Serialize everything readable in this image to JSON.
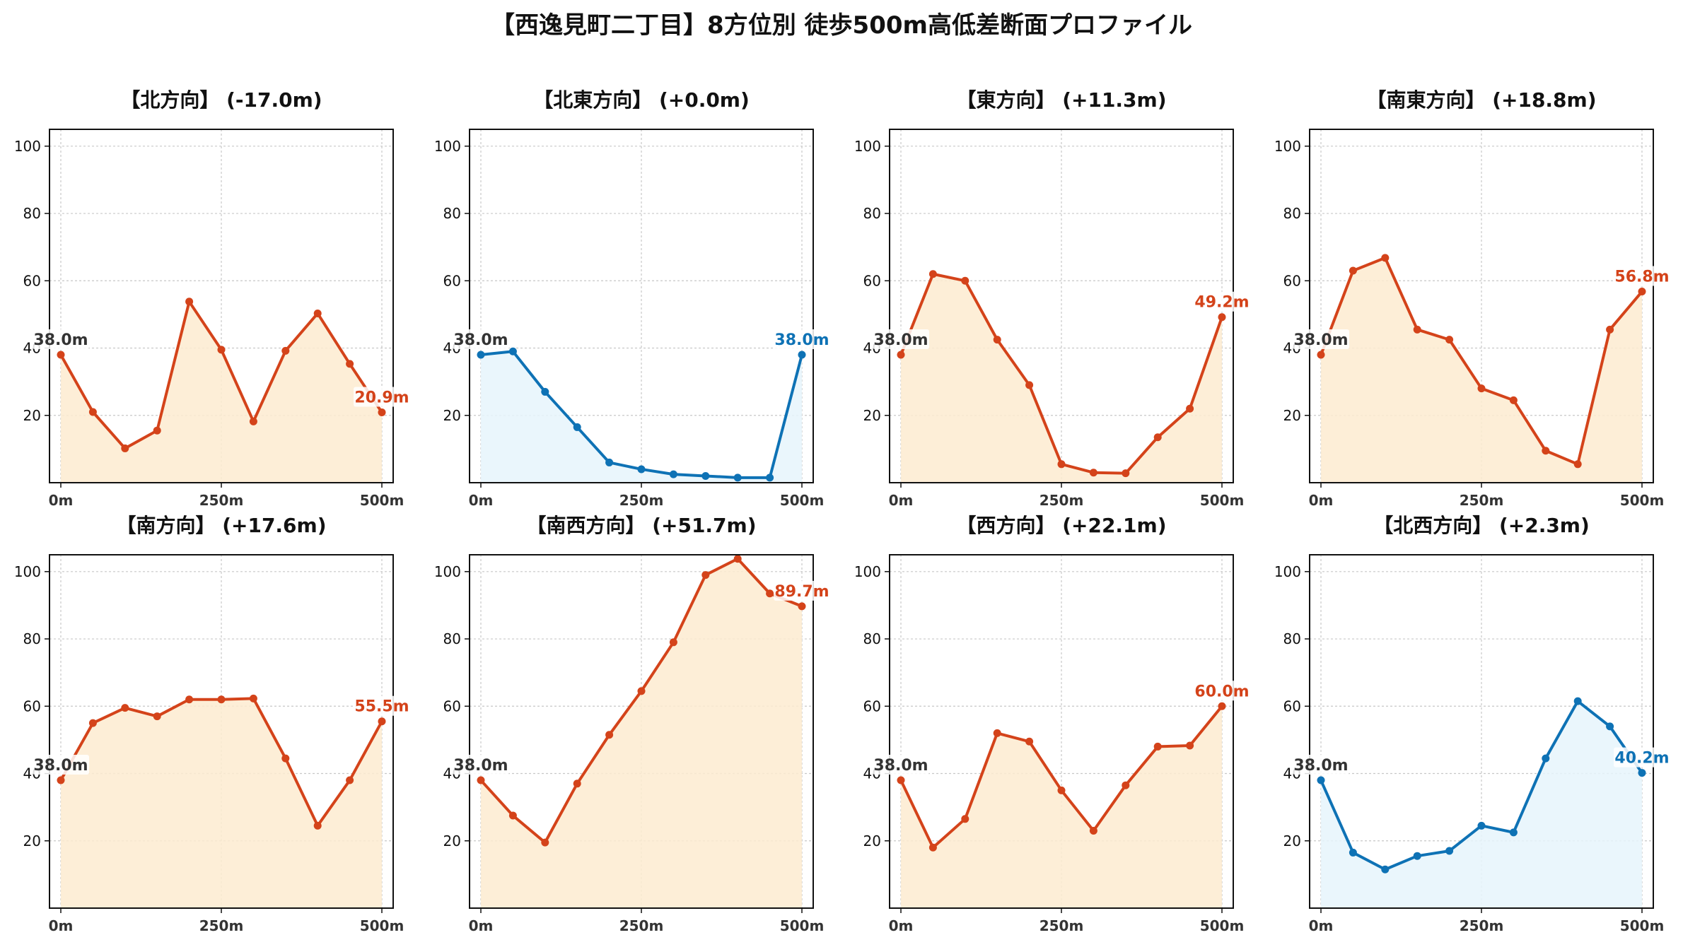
{
  "title": "【西逸見町二丁目】8方位別 徒歩500m高低差断面プロファイル",
  "colors": {
    "up_line": "#D4431A",
    "up_fill": "#FDEBD0",
    "flat_line": "#0E72B5",
    "flat_fill": "#E6F4FB",
    "start_label": "#333333",
    "grid": "#c8c8c8"
  },
  "chart_data": [
    {
      "type": "line",
      "title": "【北方向】 (-17.0m)",
      "style": "up",
      "x": [
        0,
        50,
        100,
        150,
        200,
        250,
        300,
        350,
        400,
        450,
        500
      ],
      "y": [
        38.0,
        21.0,
        10.2,
        15.5,
        53.8,
        39.5,
        18.2,
        39.2,
        50.3,
        35.3,
        20.9
      ],
      "start_label": "38.0m",
      "end_label": "20.9m",
      "xticks": [
        "0m",
        "250m",
        "500m"
      ],
      "yticks": [
        20,
        40,
        60,
        80,
        100
      ],
      "ylim": [
        0,
        105
      ],
      "grid": true
    },
    {
      "type": "line",
      "title": "【北東方向】 (+0.0m)",
      "style": "flat",
      "x": [
        0,
        50,
        100,
        150,
        200,
        250,
        300,
        350,
        400,
        450,
        500
      ],
      "y": [
        38.0,
        39.0,
        27.0,
        16.5,
        6.0,
        4.0,
        2.5,
        2.0,
        1.5,
        1.5,
        38.0
      ],
      "start_label": "38.0m",
      "end_label": "38.0m",
      "xticks": [
        "0m",
        "250m",
        "500m"
      ],
      "yticks": [
        20,
        40,
        60,
        80,
        100
      ],
      "ylim": [
        0,
        105
      ],
      "grid": true
    },
    {
      "type": "line",
      "title": "【東方向】 (+11.3m)",
      "style": "up",
      "x": [
        0,
        50,
        100,
        150,
        200,
        250,
        300,
        350,
        400,
        450,
        500
      ],
      "y": [
        38.0,
        62.0,
        60.0,
        42.5,
        29.0,
        5.5,
        3.0,
        2.8,
        13.5,
        22.0,
        49.2
      ],
      "start_label": "38.0m",
      "end_label": "49.2m",
      "xticks": [
        "0m",
        "250m",
        "500m"
      ],
      "yticks": [
        20,
        40,
        60,
        80,
        100
      ],
      "ylim": [
        0,
        105
      ],
      "grid": true
    },
    {
      "type": "line",
      "title": "【南東方向】 (+18.8m)",
      "style": "up",
      "x": [
        0,
        50,
        100,
        150,
        200,
        250,
        300,
        350,
        400,
        450,
        500
      ],
      "y": [
        38.0,
        63.0,
        66.8,
        45.5,
        42.5,
        28.0,
        24.5,
        9.5,
        5.5,
        45.5,
        56.8
      ],
      "start_label": "38.0m",
      "end_label": "56.8m",
      "xticks": [
        "0m",
        "250m",
        "500m"
      ],
      "yticks": [
        20,
        40,
        60,
        80,
        100
      ],
      "ylim": [
        0,
        105
      ],
      "grid": true
    },
    {
      "type": "line",
      "title": "【南方向】 (+17.6m)",
      "style": "up",
      "x": [
        0,
        50,
        100,
        150,
        200,
        250,
        300,
        350,
        400,
        450,
        500
      ],
      "y": [
        38.0,
        55.0,
        59.5,
        57.0,
        62.0,
        62.0,
        62.3,
        44.5,
        24.5,
        38.0,
        55.5
      ],
      "start_label": "38.0m",
      "end_label": "55.5m",
      "xticks": [
        "0m",
        "250m",
        "500m"
      ],
      "yticks": [
        20,
        40,
        60,
        80,
        100
      ],
      "ylim": [
        0,
        105
      ],
      "grid": true
    },
    {
      "type": "line",
      "title": "【南西方向】 (+51.7m)",
      "style": "up",
      "x": [
        0,
        50,
        100,
        150,
        200,
        250,
        300,
        350,
        400,
        450,
        500
      ],
      "y": [
        38.0,
        27.5,
        19.5,
        37.0,
        51.5,
        64.5,
        79.0,
        99.0,
        103.8,
        93.5,
        89.7
      ],
      "start_label": "38.0m",
      "end_label": "89.7m",
      "xticks": [
        "0m",
        "250m",
        "500m"
      ],
      "yticks": [
        20,
        40,
        60,
        80,
        100
      ],
      "ylim": [
        0,
        105
      ],
      "grid": true
    },
    {
      "type": "line",
      "title": "【西方向】 (+22.1m)",
      "style": "up",
      "x": [
        0,
        50,
        100,
        150,
        200,
        250,
        300,
        350,
        400,
        450,
        500
      ],
      "y": [
        38.0,
        18.0,
        26.5,
        52.0,
        49.5,
        35.0,
        23.0,
        36.5,
        48.0,
        48.3,
        60.0
      ],
      "start_label": "38.0m",
      "end_label": "60.0m",
      "xticks": [
        "0m",
        "250m",
        "500m"
      ],
      "yticks": [
        20,
        40,
        60,
        80,
        100
      ],
      "ylim": [
        0,
        105
      ],
      "grid": true
    },
    {
      "type": "line",
      "title": "【北西方向】 (+2.3m)",
      "style": "flat",
      "x": [
        0,
        50,
        100,
        150,
        200,
        250,
        300,
        350,
        400,
        450,
        500
      ],
      "y": [
        38.0,
        16.5,
        11.5,
        15.5,
        17.0,
        24.5,
        22.5,
        44.5,
        61.5,
        54.0,
        40.2
      ],
      "start_label": "38.0m",
      "end_label": "40.2m",
      "xticks": [
        "0m",
        "250m",
        "500m"
      ],
      "yticks": [
        20,
        40,
        60,
        80,
        100
      ],
      "ylim": [
        0,
        105
      ],
      "grid": true
    }
  ]
}
